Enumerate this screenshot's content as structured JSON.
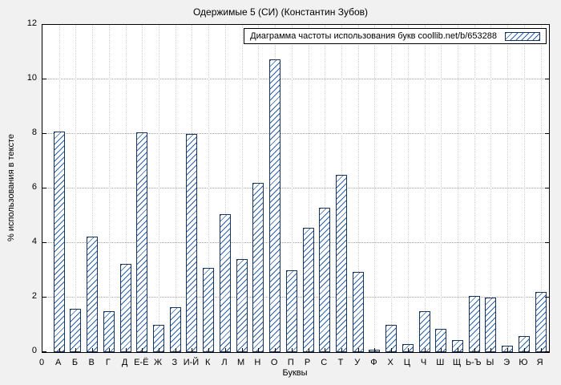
{
  "chart_data": {
    "type": "bar",
    "title": "Одержимые 5 (СИ) (Константин Зубов)",
    "legend_label": "Диаграмма частоты использования букв coollib.net/b/653288",
    "xlabel": "Буквы",
    "ylabel": "% использования в тексте",
    "origin_label": "0",
    "categories": [
      "А",
      "Б",
      "В",
      "Г",
      "Д",
      "Е-Ё",
      "Ж",
      "З",
      "И-Й",
      "К",
      "Л",
      "М",
      "Н",
      "О",
      "П",
      "Р",
      "С",
      "Т",
      "У",
      "Ф",
      "Х",
      "Ц",
      "Ч",
      "Ш",
      "Щ",
      "Ь-Ъ",
      "Ы",
      "Э",
      "Ю",
      "Я"
    ],
    "values": [
      8.1,
      1.6,
      4.25,
      1.5,
      3.25,
      8.05,
      1.0,
      1.65,
      8.0,
      3.1,
      5.05,
      3.4,
      6.2,
      10.75,
      3.0,
      4.55,
      5.3,
      6.5,
      2.95,
      0.1,
      1.0,
      0.3,
      1.5,
      0.85,
      0.45,
      2.05,
      2.0,
      0.25,
      0.6,
      2.2
    ],
    "ylim": [
      0,
      12
    ],
    "yticks": [
      0,
      2,
      4,
      6,
      8,
      10,
      12
    ],
    "grid": true,
    "legend_position": "top-right",
    "colors": {
      "figure_background": "#f1f1f1",
      "plot_background": "#ffffff",
      "bar_hatch": "#2a5fa5",
      "bar_border": "#16365f",
      "axis": "#000000"
    }
  }
}
